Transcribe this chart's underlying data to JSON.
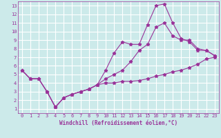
{
  "bg_color": "#cceaea",
  "grid_color": "#ffffff",
  "line_color": "#993399",
  "marker_color": "#993399",
  "xlabel": "Windchill (Refroidissement éolien,°C)",
  "xlim": [
    -0.5,
    23.5
  ],
  "ylim": [
    0.5,
    13.5
  ],
  "xticks": [
    0,
    1,
    2,
    3,
    4,
    5,
    6,
    7,
    8,
    9,
    10,
    11,
    12,
    13,
    14,
    15,
    16,
    17,
    18,
    19,
    20,
    21,
    22,
    23
  ],
  "yticks": [
    1,
    2,
    3,
    4,
    5,
    6,
    7,
    8,
    9,
    10,
    11,
    12,
    13
  ],
  "series": [
    {
      "x": [
        0,
        1,
        2,
        3,
        4,
        5,
        6,
        7,
        8,
        9,
        10,
        11,
        12,
        13,
        14,
        15,
        16,
        17,
        18,
        19,
        20,
        21,
        22,
        23
      ],
      "y": [
        5.5,
        4.5,
        4.5,
        3.0,
        1.2,
        2.3,
        2.7,
        3.0,
        3.3,
        3.8,
        4.0,
        4.0,
        4.2,
        4.2,
        4.3,
        4.5,
        4.8,
        5.0,
        5.3,
        5.5,
        5.8,
        6.2,
        6.8,
        7.0
      ]
    },
    {
      "x": [
        0,
        1,
        2,
        3,
        4,
        5,
        6,
        7,
        8,
        9,
        10,
        11,
        12,
        13,
        14,
        15,
        16,
        17,
        18,
        19,
        20,
        21,
        22,
        23
      ],
      "y": [
        5.5,
        4.5,
        4.5,
        3.0,
        1.2,
        2.3,
        2.7,
        3.0,
        3.3,
        3.8,
        5.5,
        7.5,
        8.8,
        8.5,
        8.5,
        10.8,
        13.0,
        13.2,
        11.0,
        9.2,
        8.8,
        7.8,
        7.8,
        7.2
      ]
    },
    {
      "x": [
        0,
        1,
        2,
        3,
        4,
        5,
        6,
        7,
        8,
        9,
        10,
        11,
        12,
        13,
        14,
        15,
        16,
        17,
        18,
        19,
        20,
        21,
        22,
        23
      ],
      "y": [
        5.5,
        4.5,
        4.5,
        3.0,
        1.2,
        2.3,
        2.7,
        3.0,
        3.3,
        3.8,
        4.5,
        5.0,
        5.5,
        6.5,
        7.8,
        8.5,
        10.5,
        11.0,
        9.5,
        9.0,
        9.0,
        8.0,
        7.8,
        7.2
      ]
    }
  ]
}
